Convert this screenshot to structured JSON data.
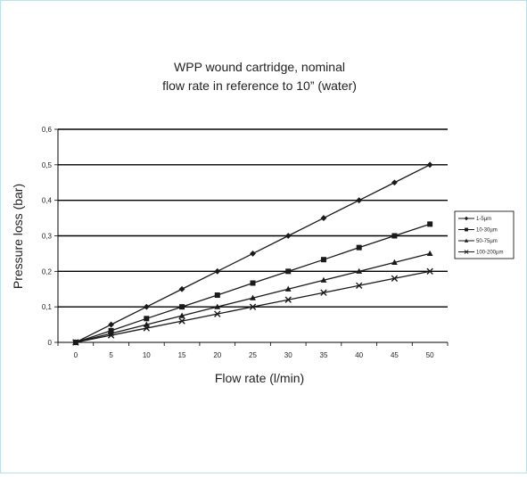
{
  "chart_data": {
    "type": "line",
    "title_lines": [
      "WPP wound cartridge, nominal",
      "flow rate in reference to 10” (water)"
    ],
    "xlabel": "Flow rate  (l/min)",
    "ylabel": "Pressure loss (bar)",
    "x_ticks": [
      "0",
      "5",
      "10",
      "15",
      "20",
      "25",
      "30",
      "35",
      "40",
      "45",
      "50"
    ],
    "y_ticks": [
      "0",
      "0,1",
      "0,2",
      "0,3",
      "0,4",
      "0,5",
      "0,6"
    ],
    "xlim": [
      -2.5,
      52.5
    ],
    "ylim": [
      0,
      0.6
    ],
    "grid": "horizontal",
    "legend_position": "right",
    "line_color": "#1a1a1a",
    "series": [
      {
        "name": "1-5µm",
        "marker": "diamond",
        "x": [
          0,
          5,
          10,
          15,
          20,
          25,
          30,
          35,
          40,
          45,
          50
        ],
        "y": [
          0,
          0.05,
          0.1,
          0.15,
          0.2,
          0.25,
          0.3,
          0.35,
          0.4,
          0.45,
          0.5
        ]
      },
      {
        "name": "10-30µm",
        "marker": "square",
        "x": [
          0,
          5,
          10,
          15,
          20,
          25,
          30,
          35,
          40,
          45,
          50
        ],
        "y": [
          0,
          0.033,
          0.067,
          0.1,
          0.133,
          0.167,
          0.2,
          0.233,
          0.267,
          0.3,
          0.333
        ]
      },
      {
        "name": "50-75µm",
        "marker": "triangle",
        "x": [
          0,
          5,
          10,
          15,
          20,
          25,
          30,
          35,
          40,
          45,
          50
        ],
        "y": [
          0,
          0.025,
          0.05,
          0.075,
          0.1,
          0.125,
          0.15,
          0.175,
          0.2,
          0.225,
          0.25
        ]
      },
      {
        "name": "100-200µm",
        "marker": "x",
        "x": [
          0,
          5,
          10,
          15,
          20,
          25,
          30,
          35,
          40,
          45,
          50
        ],
        "y": [
          0,
          0.02,
          0.04,
          0.06,
          0.08,
          0.1,
          0.12,
          0.14,
          0.16,
          0.18,
          0.2
        ]
      }
    ]
  }
}
